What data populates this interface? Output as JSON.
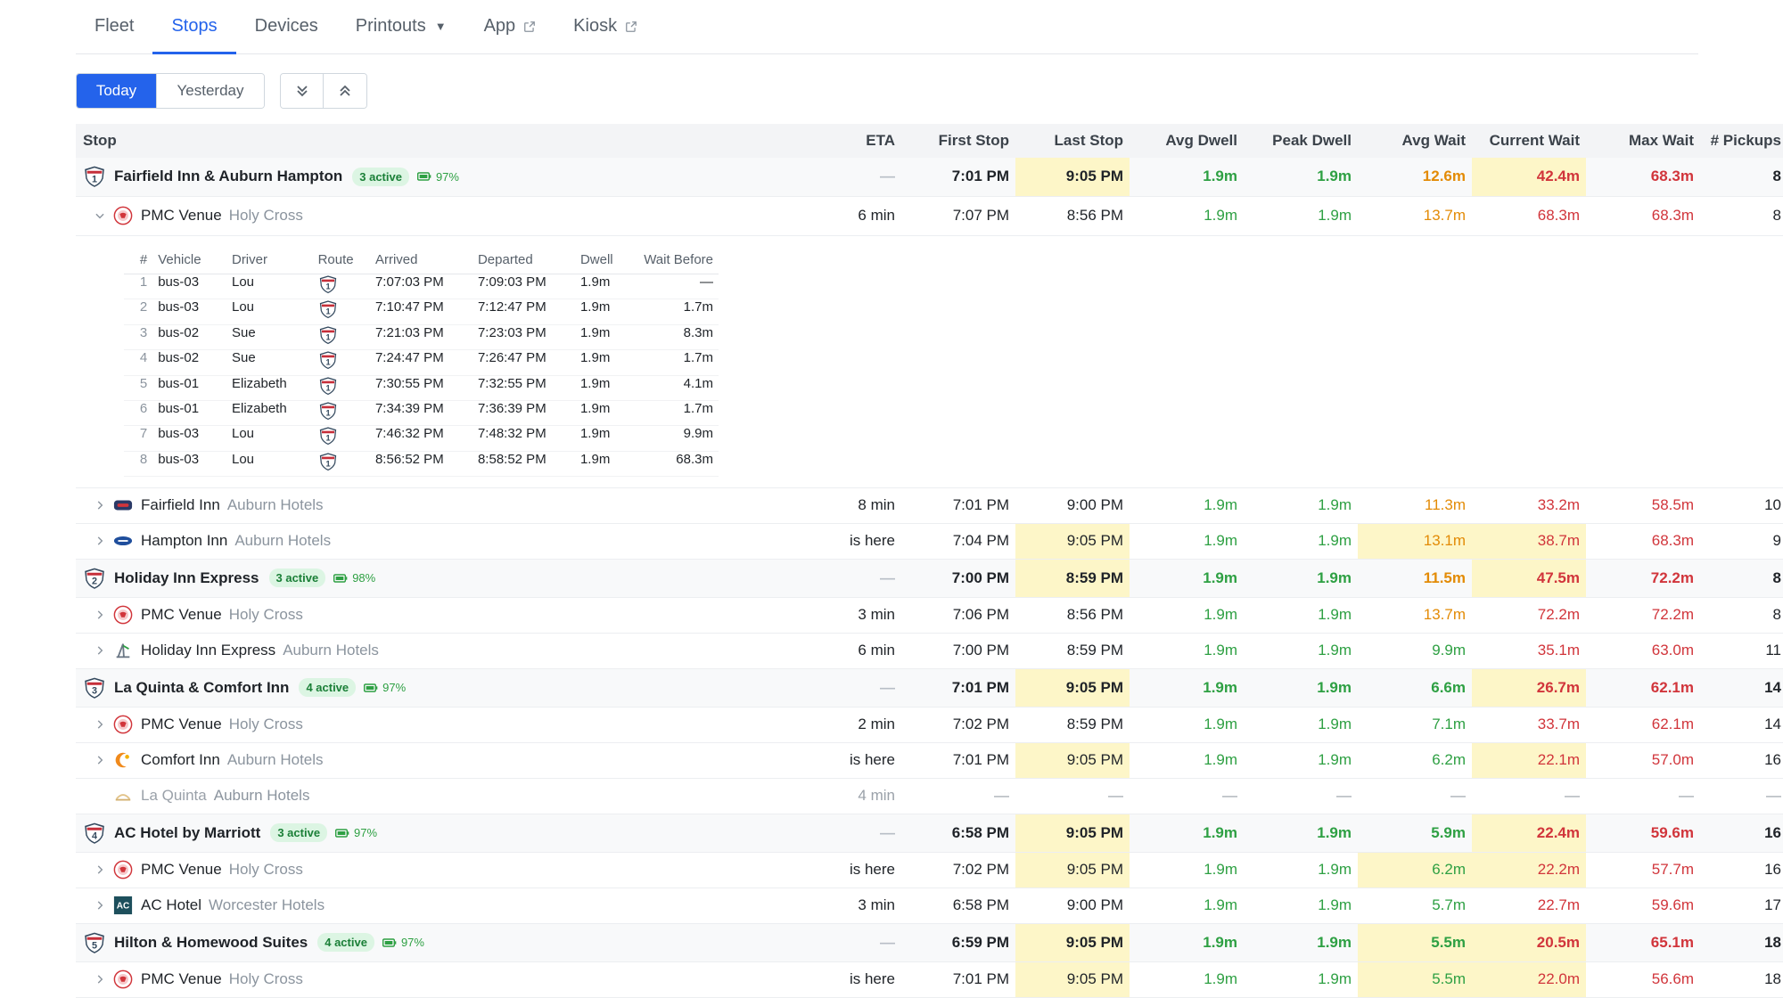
{
  "nav": {
    "tabs": [
      {
        "label": "Fleet",
        "active": false
      },
      {
        "label": "Stops",
        "active": true
      },
      {
        "label": "Devices",
        "active": false
      },
      {
        "label": "Printouts",
        "active": false,
        "icon": "caret-down-icon"
      },
      {
        "label": "App",
        "active": false,
        "icon": "external-link-icon"
      },
      {
        "label": "Kiosk",
        "active": false,
        "icon": "external-link-icon"
      }
    ]
  },
  "toolbar": {
    "today_label": "Today",
    "yesterday_label": "Yesterday",
    "expand_icon": "chevrons-down-icon",
    "collapse_icon": "chevrons-up-icon"
  },
  "colors": {
    "accent": "#2463eb",
    "green": "#2ea043",
    "orange": "#e38b06",
    "red": "#d1353b",
    "highlight": "#fdf6c8"
  },
  "table": {
    "headers": [
      "Stop",
      "ETA",
      "First Stop",
      "Last Stop",
      "Avg Dwell",
      "Peak Dwell",
      "Avg Wait",
      "Current Wait",
      "Max Wait",
      "# Pickups"
    ],
    "groups": [
      {
        "route": "1",
        "route_color": "#c62f3a",
        "name": "Fairfield Inn & Auburn Hampton",
        "active": "3 active",
        "battery": "97%",
        "eta": "—",
        "first": "7:01 PM",
        "last": "9:05 PM",
        "avg_dwell": "1.9m",
        "peak_dwell": "1.9m",
        "avg_wait": "12.6m",
        "current_wait": "42.4m",
        "max_wait": "68.3m",
        "pickups": "8",
        "children": [
          {
            "name": "PMC Venue",
            "sub": "Holy Cross",
            "logo": "pmc-logo",
            "expanded": true,
            "eta": "6 min",
            "first": "7:07 PM",
            "last": "8:56 PM",
            "avg_dwell": "1.9m",
            "peak_dwell": "1.9m",
            "avg_wait": "13.7m",
            "current_wait": "68.3m",
            "max_wait": "68.3m",
            "pickups": "8",
            "trips": {
              "headers": [
                "#",
                "Vehicle",
                "Driver",
                "Route",
                "Arrived",
                "Departed",
                "Dwell",
                "Wait Before"
              ],
              "rows": [
                {
                  "n": "1",
                  "vehicle": "bus-03",
                  "driver": "Lou",
                  "arrived": "7:07:03 PM",
                  "departed": "7:09:03 PM",
                  "dwell": "1.9m",
                  "wait": "—",
                  "wait_color": "dash"
                },
                {
                  "n": "2",
                  "vehicle": "bus-03",
                  "driver": "Lou",
                  "arrived": "7:10:47 PM",
                  "departed": "7:12:47 PM",
                  "dwell": "1.9m",
                  "wait": "1.7m",
                  "wait_color": "green"
                },
                {
                  "n": "3",
                  "vehicle": "bus-02",
                  "driver": "Sue",
                  "arrived": "7:21:03 PM",
                  "departed": "7:23:03 PM",
                  "dwell": "1.9m",
                  "wait": "8.3m",
                  "wait_color": "green"
                },
                {
                  "n": "4",
                  "vehicle": "bus-02",
                  "driver": "Sue",
                  "arrived": "7:24:47 PM",
                  "departed": "7:26:47 PM",
                  "dwell": "1.9m",
                  "wait": "1.7m",
                  "wait_color": "green"
                },
                {
                  "n": "5",
                  "vehicle": "bus-01",
                  "driver": "Elizabeth",
                  "arrived": "7:30:55 PM",
                  "departed": "7:32:55 PM",
                  "dwell": "1.9m",
                  "wait": "4.1m",
                  "wait_color": "green"
                },
                {
                  "n": "6",
                  "vehicle": "bus-01",
                  "driver": "Elizabeth",
                  "arrived": "7:34:39 PM",
                  "departed": "7:36:39 PM",
                  "dwell": "1.9m",
                  "wait": "1.7m",
                  "wait_color": "green"
                },
                {
                  "n": "7",
                  "vehicle": "bus-03",
                  "driver": "Lou",
                  "arrived": "7:46:32 PM",
                  "departed": "7:48:32 PM",
                  "dwell": "1.9m",
                  "wait": "9.9m",
                  "wait_color": "green"
                },
                {
                  "n": "8",
                  "vehicle": "bus-03",
                  "driver": "Lou",
                  "arrived": "8:56:52 PM",
                  "departed": "8:58:52 PM",
                  "dwell": "1.9m",
                  "wait": "68.3m",
                  "wait_color": "red"
                }
              ]
            }
          },
          {
            "name": "Fairfield Inn",
            "sub": "Auburn Hotels",
            "logo": "fairfield-logo",
            "eta": "8 min",
            "first": "7:01 PM",
            "last": "9:00 PM",
            "avg_dwell": "1.9m",
            "peak_dwell": "1.9m",
            "avg_wait": "11.3m",
            "current_wait": "33.2m",
            "max_wait": "58.5m",
            "pickups": "10"
          },
          {
            "name": "Hampton Inn",
            "sub": "Auburn Hotels",
            "logo": "hampton-logo",
            "eta": "is here",
            "first": "7:04 PM",
            "last": "9:05 PM",
            "avg_dwell": "1.9m",
            "peak_dwell": "1.9m",
            "avg_wait": "13.1m",
            "current_wait": "38.7m",
            "max_wait": "68.3m",
            "pickups": "9",
            "hl_last": true,
            "hl_avg_wait": true,
            "hl_current_wait": true
          }
        ]
      },
      {
        "route": "2",
        "route_color": "#c62f3a",
        "name": "Holiday Inn Express",
        "active": "3 active",
        "battery": "98%",
        "eta": "—",
        "first": "7:00 PM",
        "last": "8:59 PM",
        "avg_dwell": "1.9m",
        "peak_dwell": "1.9m",
        "avg_wait": "11.5m",
        "current_wait": "47.5m",
        "max_wait": "72.2m",
        "pickups": "8",
        "children": [
          {
            "name": "PMC Venue",
            "sub": "Holy Cross",
            "logo": "pmc-logo",
            "eta": "3 min",
            "first": "7:06 PM",
            "last": "8:56 PM",
            "avg_dwell": "1.9m",
            "peak_dwell": "1.9m",
            "avg_wait": "13.7m",
            "current_wait": "72.2m",
            "max_wait": "72.2m",
            "pickups": "8"
          },
          {
            "name": "Holiday Inn Express",
            "sub": "Auburn Hotels",
            "logo": "holiday-logo",
            "eta": "6 min",
            "first": "7:00 PM",
            "last": "8:59 PM",
            "avg_dwell": "1.9m",
            "peak_dwell": "1.9m",
            "avg_wait": "9.9m",
            "current_wait": "35.1m",
            "max_wait": "63.0m",
            "pickups": "11",
            "avg_wait_color": "green"
          }
        ]
      },
      {
        "route": "3",
        "route_color": "#c62f3a",
        "name": "La Quinta & Comfort Inn",
        "active": "4 active",
        "battery": "97%",
        "eta": "—",
        "first": "7:01 PM",
        "last": "9:05 PM",
        "avg_dwell": "1.9m",
        "peak_dwell": "1.9m",
        "avg_wait": "6.6m",
        "current_wait": "26.7m",
        "max_wait": "62.1m",
        "pickups": "14",
        "avg_wait_color": "green",
        "children": [
          {
            "name": "PMC Venue",
            "sub": "Holy Cross",
            "logo": "pmc-logo",
            "eta": "2 min",
            "first": "7:02 PM",
            "last": "8:59 PM",
            "avg_dwell": "1.9m",
            "peak_dwell": "1.9m",
            "avg_wait": "7.1m",
            "current_wait": "33.7m",
            "max_wait": "62.1m",
            "pickups": "14",
            "avg_wait_color": "green"
          },
          {
            "name": "Comfort Inn",
            "sub": "Auburn Hotels",
            "logo": "comfort-logo",
            "eta": "is here",
            "first": "7:01 PM",
            "last": "9:05 PM",
            "avg_dwell": "1.9m",
            "peak_dwell": "1.9m",
            "avg_wait": "6.2m",
            "current_wait": "22.1m",
            "max_wait": "57.0m",
            "pickups": "16",
            "hl_last": true,
            "hl_current_wait": true,
            "avg_wait_color": "green"
          },
          {
            "name": "La Quinta",
            "sub": "Auburn Hotels",
            "logo": "laquinta-logo",
            "muted": true,
            "eta": "4 min",
            "first": "—",
            "last": "—",
            "avg_dwell": "—",
            "peak_dwell": "—",
            "avg_wait": "—",
            "current_wait": "—",
            "max_wait": "—",
            "pickups": "—"
          }
        ]
      },
      {
        "route": "4",
        "route_color": "#c62f3a",
        "name": "AC Hotel by Marriott",
        "active": "3 active",
        "battery": "97%",
        "eta": "—",
        "first": "6:58 PM",
        "last": "9:05 PM",
        "avg_dwell": "1.9m",
        "peak_dwell": "1.9m",
        "avg_wait": "5.9m",
        "current_wait": "22.4m",
        "max_wait": "59.6m",
        "pickups": "16",
        "avg_wait_color": "green",
        "children": [
          {
            "name": "PMC Venue",
            "sub": "Holy Cross",
            "logo": "pmc-logo",
            "eta": "is here",
            "first": "7:02 PM",
            "last": "9:05 PM",
            "avg_dwell": "1.9m",
            "peak_dwell": "1.9m",
            "avg_wait": "6.2m",
            "current_wait": "22.2m",
            "max_wait": "57.7m",
            "pickups": "16",
            "hl_last": true,
            "hl_avg_wait": true,
            "hl_current_wait": true,
            "avg_wait_color": "green"
          },
          {
            "name": "AC Hotel",
            "sub": "Worcester Hotels",
            "logo": "achotel-logo",
            "eta": "3 min",
            "first": "6:58 PM",
            "last": "9:00 PM",
            "avg_dwell": "1.9m",
            "peak_dwell": "1.9m",
            "avg_wait": "5.7m",
            "current_wait": "22.7m",
            "max_wait": "59.6m",
            "pickups": "17",
            "avg_wait_color": "green"
          }
        ]
      },
      {
        "route": "5",
        "route_color": "#c62f3a",
        "name": "Hilton & Homewood Suites",
        "active": "4 active",
        "battery": "97%",
        "eta": "—",
        "first": "6:59 PM",
        "last": "9:05 PM",
        "avg_dwell": "1.9m",
        "peak_dwell": "1.9m",
        "avg_wait": "5.5m",
        "current_wait": "20.5m",
        "max_wait": "65.1m",
        "pickups": "18",
        "avg_wait_color": "green",
        "hl_avg_wait": true,
        "children": [
          {
            "name": "PMC Venue",
            "sub": "Holy Cross",
            "logo": "pmc-logo",
            "eta": "is here",
            "first": "7:01 PM",
            "last": "9:05 PM",
            "avg_dwell": "1.9m",
            "peak_dwell": "1.9m",
            "avg_wait": "5.5m",
            "current_wait": "22.0m",
            "max_wait": "56.6m",
            "pickups": "18",
            "hl_last": true,
            "hl_avg_wait": true,
            "hl_current_wait": true,
            "avg_wait_color": "green"
          }
        ]
      }
    ]
  }
}
